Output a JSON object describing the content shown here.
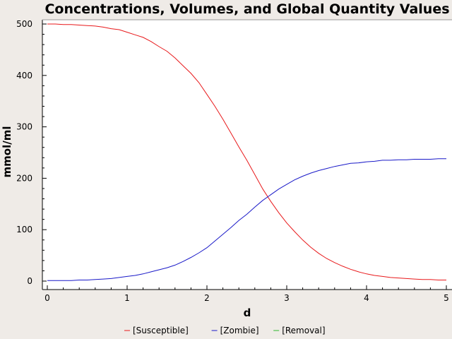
{
  "chart_data": {
    "type": "line",
    "title": "Concentrations, Volumes, and Global Quantity Values",
    "xlabel": "d",
    "ylabel": "mmol/ml",
    "xlim": [
      0,
      5
    ],
    "ylim": [
      0,
      500
    ],
    "x_ticks": [
      "0",
      "1",
      "2",
      "3",
      "4",
      "5"
    ],
    "y_ticks": [
      "0",
      "100",
      "200",
      "300",
      "400",
      "500"
    ],
    "grid": false,
    "legend_position": "bottom",
    "colors": {
      "background": "#efebe7",
      "plot_background": "#ffffff",
      "axis": "#000000"
    },
    "series": [
      {
        "name": "[Susceptible]",
        "color": "#e8191b",
        "x": [
          0,
          0.1,
          0.2,
          0.3,
          0.4,
          0.5,
          0.6,
          0.7,
          0.8,
          0.9,
          1.0,
          1.1,
          1.2,
          1.3,
          1.4,
          1.5,
          1.6,
          1.7,
          1.8,
          1.9,
          2.0,
          2.1,
          2.2,
          2.3,
          2.4,
          2.5,
          2.6,
          2.7,
          2.8,
          2.9,
          3.0,
          3.1,
          3.2,
          3.3,
          3.4,
          3.5,
          3.6,
          3.7,
          3.8,
          3.9,
          4.0,
          4.1,
          4.2,
          4.3,
          4.4,
          4.5,
          4.6,
          4.7,
          4.8,
          4.9,
          5.0
        ],
        "values": [
          500,
          500,
          499,
          499,
          498,
          497,
          496,
          494,
          491,
          489,
          484,
          479,
          474,
          466,
          456,
          447,
          434,
          419,
          404,
          386,
          363,
          340,
          315,
          288,
          261,
          235,
          207,
          179,
          155,
          133,
          113,
          96,
          80,
          66,
          54,
          44,
          36,
          29,
          23,
          18,
          14,
          11,
          9,
          7,
          6,
          5,
          4,
          3,
          3,
          2,
          2
        ]
      },
      {
        "name": "[Zombie]",
        "color": "#1919c8",
        "x": [
          0,
          0.1,
          0.2,
          0.3,
          0.4,
          0.5,
          0.6,
          0.7,
          0.8,
          0.9,
          1.0,
          1.1,
          1.2,
          1.3,
          1.4,
          1.5,
          1.6,
          1.7,
          1.8,
          1.9,
          2.0,
          2.1,
          2.2,
          2.3,
          2.4,
          2.5,
          2.6,
          2.7,
          2.8,
          2.9,
          3.0,
          3.1,
          3.2,
          3.3,
          3.4,
          3.5,
          3.6,
          3.7,
          3.8,
          3.9,
          4.0,
          4.1,
          4.2,
          4.3,
          4.4,
          4.5,
          4.6,
          4.7,
          4.8,
          4.9,
          5.0
        ],
        "values": [
          1,
          1,
          1,
          1,
          2,
          2,
          3,
          4,
          5,
          7,
          9,
          11,
          14,
          18,
          22,
          26,
          31,
          38,
          46,
          55,
          65,
          78,
          91,
          104,
          118,
          130,
          144,
          157,
          168,
          179,
          188,
          197,
          204,
          210,
          215,
          219,
          223,
          226,
          229,
          230,
          232,
          233,
          235,
          235,
          236,
          236,
          237,
          237,
          237,
          238,
          238
        ]
      },
      {
        "name": "[Removal]",
        "color": "#2db82d",
        "x": [],
        "values": []
      }
    ]
  }
}
